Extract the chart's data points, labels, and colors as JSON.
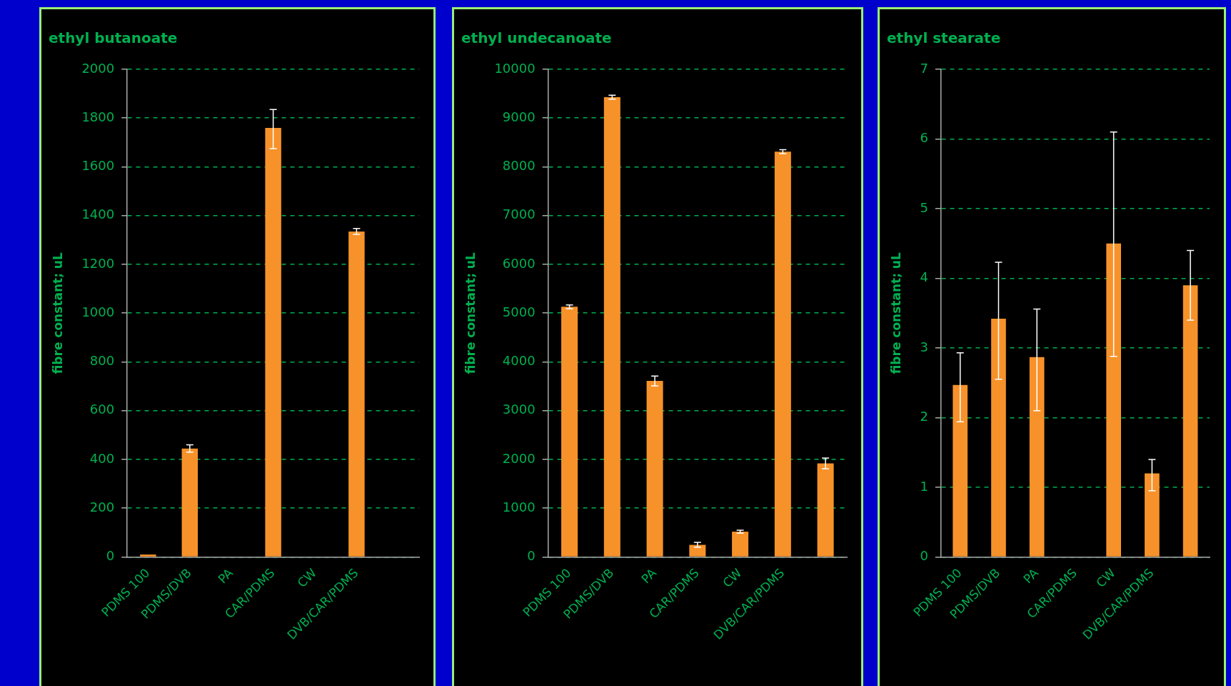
{
  "chart_data": [
    {
      "type": "bar",
      "title": "ethyl butanoate",
      "ylabel": "fibre constant; uL",
      "categories": [
        "PDMS 100",
        "PDMS/DVB",
        "PA",
        "CAR/PDMS",
        "CW",
        "DVB/CAR/PDMS",
        null
      ],
      "values": [
        10,
        445,
        null,
        1760,
        null,
        1335,
        null
      ],
      "errors": [
        null,
        15,
        null,
        [
          1675,
          1835
        ],
        null,
        12,
        null
      ],
      "color": "#f7922a",
      "ylim": [
        0,
        2000
      ],
      "yticks": [
        0,
        200,
        400,
        600,
        800,
        1000,
        1200,
        1400,
        1600,
        1800,
        2000
      ],
      "grid": "y"
    },
    {
      "type": "bar",
      "title": "ethyl undecanoate",
      "ylabel": "fibre constant; uL",
      "categories": [
        "PDMS 100",
        "PDMS/DVB",
        "PA",
        "CAR/PDMS",
        "CW",
        "DVB/CAR/PDMS",
        null
      ],
      "values": [
        5130,
        9430,
        3610,
        250,
        520,
        8310,
        1920
      ],
      "errors": [
        40,
        40,
        100,
        50,
        30,
        40,
        110
      ],
      "color": "#f7922a",
      "ylim": [
        0,
        10000
      ],
      "yticks": [
        0,
        1000,
        2000,
        3000,
        4000,
        5000,
        6000,
        7000,
        8000,
        9000,
        10000
      ],
      "grid": "y"
    },
    {
      "type": "bar",
      "title": "ethyl stearate",
      "ylabel": "fibre constant; uL",
      "categories": [
        "PDMS 100",
        "PDMS/DVB",
        "PA",
        "CAR/PDMS",
        "CW",
        "DVB/CAR/PDMS",
        null
      ],
      "values": [
        2.47,
        3.42,
        2.87,
        null,
        4.5,
        1.2,
        3.9
      ],
      "errors": [
        [
          1.94,
          2.93
        ],
        [
          2.55,
          4.23
        ],
        [
          2.1,
          3.56
        ],
        null,
        [
          2.88,
          6.1
        ],
        [
          0.95,
          1.4
        ],
        [
          3.4,
          4.4
        ]
      ],
      "color": "#f7922a",
      "ylim": [
        0,
        7
      ],
      "yticks": [
        0,
        1,
        2,
        3,
        4,
        5,
        6,
        7
      ],
      "grid": "y"
    }
  ]
}
